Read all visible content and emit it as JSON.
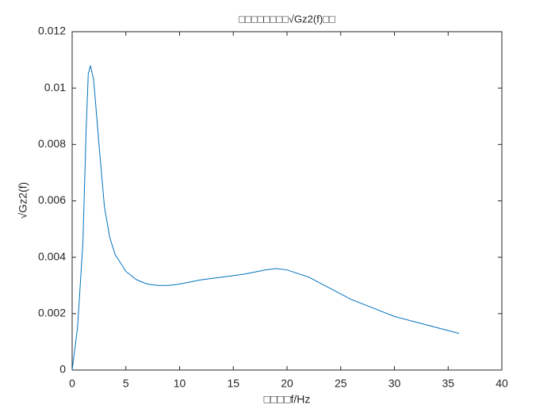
{
  "chart_data": {
    "type": "line",
    "title": "□□□□□□□□√Gz2(f)□□",
    "xlabel": "□□□□f/Hz",
    "ylabel": "√Gz2(f)",
    "x": [
      0,
      0.5,
      1,
      1.3,
      1.5,
      1.7,
      2,
      2.5,
      3,
      3.5,
      4,
      5,
      6,
      7,
      8,
      9,
      10,
      12,
      14,
      16,
      18,
      19,
      20,
      22,
      24,
      26,
      28,
      30,
      32,
      34,
      36
    ],
    "series": [
      {
        "color": "#0072bd",
        "values": [
          0,
          0.0015,
          0.0045,
          0.0085,
          0.0105,
          0.0108,
          0.0103,
          0.008,
          0.0058,
          0.0047,
          0.0041,
          0.0035,
          0.0032,
          0.00305,
          0.003,
          0.003,
          0.00305,
          0.0032,
          0.0033,
          0.0034,
          0.00355,
          0.0036,
          0.00355,
          0.0033,
          0.0029,
          0.0025,
          0.0022,
          0.0019,
          0.0017,
          0.0015,
          0.0013
        ]
      }
    ],
    "xlim": [
      0,
      40
    ],
    "xticks": [
      0,
      5,
      10,
      15,
      20,
      25,
      30,
      35,
      40
    ],
    "ylim": [
      0,
      0.012
    ],
    "yticks": [
      0,
      0.002,
      0.004,
      0.006,
      0.008,
      0.01,
      0.012
    ]
  }
}
